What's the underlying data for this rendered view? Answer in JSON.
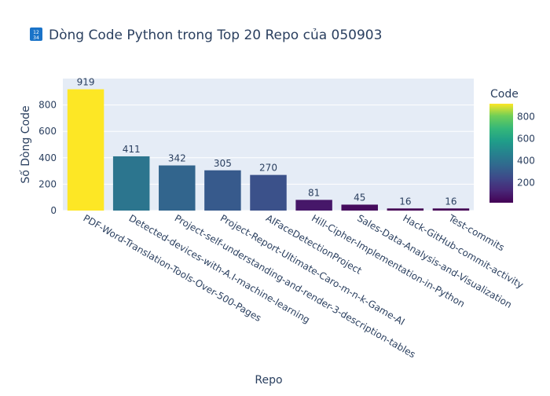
{
  "chart_data": {
    "type": "bar",
    "title": "Dòng Code Python trong Top 20 Repo của 050903",
    "title_icon": "🔢",
    "xlabel": "Repo",
    "ylabel": "Số Dòng Code",
    "categories": [
      "PDF-Word-Translation-Tools-Over-500-Pages",
      "Detected-devices-with-A.I-machine-learning",
      "Project-self-understanding-and-render-3-description-tables",
      "Project-Report-Ultimate-Caro-m-n-k-Game-AI",
      "AIFaceDetectionProject",
      "Hill-Cipher-Implementation-in-Python",
      "Sales-Data-Analysis-and-Visualization",
      "Hack-GitHub-commit-activity",
      "Test-commits"
    ],
    "values": [
      919,
      411,
      342,
      305,
      270,
      81,
      45,
      16,
      16
    ],
    "data_labels": [
      "919",
      "411",
      "342",
      "305",
      "270",
      "81",
      "45",
      "16",
      "16"
    ],
    "ylim": [
      0,
      1000
    ],
    "yticks": [
      0,
      200,
      400,
      600,
      800
    ],
    "colorscale": "viridis",
    "colorbar": {
      "title": "Code",
      "range": [
        16,
        919
      ],
      "ticks": [
        200,
        400,
        600,
        800
      ]
    },
    "grid": true,
    "legend": "colorbar-right",
    "colors": {
      "plot_bg": "#e5ecf6",
      "grid": "#ffffff",
      "text": "#2a3f5f"
    }
  }
}
